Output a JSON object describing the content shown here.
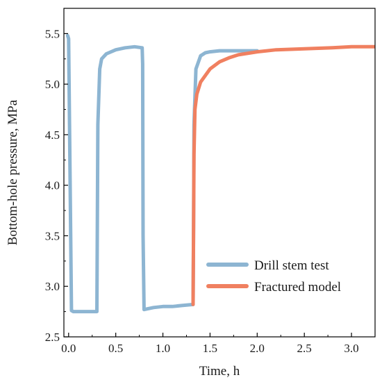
{
  "chart_data": {
    "type": "line",
    "xlabel": "Time, h",
    "ylabel": "Bottom-hole pressure, MPa",
    "xlim": [
      -0.05,
      3.25
    ],
    "ylim": [
      2.5,
      5.75
    ],
    "x_ticks": [
      0.0,
      0.5,
      1.0,
      1.5,
      2.0,
      2.5,
      3.0
    ],
    "x_tick_labels": [
      "0.0",
      "0.5",
      "1.0",
      "1.5",
      "2.0",
      "2.5",
      "3.0"
    ],
    "y_ticks": [
      2.5,
      3.0,
      3.5,
      4.0,
      4.5,
      5.0,
      5.5
    ],
    "y_tick_labels": [
      "2.5",
      "3.0",
      "3.5",
      "4.0",
      "4.5",
      "5.0",
      "5.5"
    ],
    "grid": false,
    "legend_position": "lower-right",
    "series": [
      {
        "name": "Drill stem test",
        "color": "#8db5d2",
        "x": [
          -0.01,
          0.0,
          0.01,
          0.03,
          0.05,
          0.2,
          0.3,
          0.31,
          0.33,
          0.35,
          0.4,
          0.5,
          0.6,
          0.7,
          0.78,
          0.785,
          0.79,
          0.8,
          0.9,
          1.0,
          1.1,
          1.2,
          1.32,
          1.325,
          1.33,
          1.35,
          1.4,
          1.45,
          1.5,
          1.6,
          1.8,
          2.0
        ],
        "y": [
          5.48,
          5.45,
          4.6,
          2.76,
          2.75,
          2.75,
          2.75,
          4.6,
          5.15,
          5.25,
          5.3,
          5.34,
          5.36,
          5.37,
          5.36,
          5.2,
          3.5,
          2.77,
          2.79,
          2.8,
          2.8,
          2.81,
          2.82,
          3.6,
          4.6,
          5.15,
          5.28,
          5.31,
          5.32,
          5.33,
          5.33,
          5.33
        ]
      },
      {
        "name": "Fractured model",
        "color": "#f08060",
        "x": [
          1.32,
          1.325,
          1.33,
          1.34,
          1.36,
          1.4,
          1.5,
          1.6,
          1.7,
          1.8,
          2.0,
          2.2,
          2.5,
          2.8,
          3.0,
          3.25
        ],
        "y": [
          2.82,
          3.6,
          4.3,
          4.75,
          4.9,
          5.02,
          5.15,
          5.22,
          5.26,
          5.29,
          5.32,
          5.34,
          5.35,
          5.36,
          5.37,
          5.37
        ]
      }
    ]
  }
}
